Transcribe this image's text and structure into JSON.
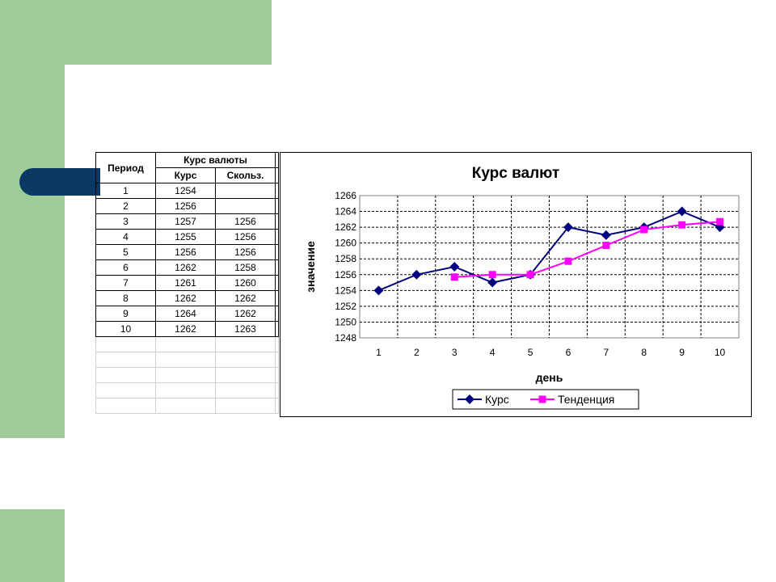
{
  "table": {
    "header": {
      "period": "Период",
      "group": "Курс валюты",
      "kurs": "Курс",
      "moving": "Скольз."
    },
    "rows": [
      {
        "period": "1",
        "kurs": "1254",
        "moving": ""
      },
      {
        "period": "2",
        "kurs": "1256",
        "moving": ""
      },
      {
        "period": "3",
        "kurs": "1257",
        "moving": "1256"
      },
      {
        "period": "4",
        "kurs": "1255",
        "moving": "1256"
      },
      {
        "period": "5",
        "kurs": "1256",
        "moving": "1256"
      },
      {
        "period": "6",
        "kurs": "1262",
        "moving": "1258"
      },
      {
        "period": "7",
        "kurs": "1261",
        "moving": "1260"
      },
      {
        "period": "8",
        "kurs": "1262",
        "moving": "1262"
      },
      {
        "period": "9",
        "kurs": "1264",
        "moving": "1262"
      },
      {
        "period": "10",
        "kurs": "1262",
        "moving": "1263"
      }
    ]
  },
  "chart_data": {
    "type": "line",
    "title": "Курс валют",
    "xlabel": "день",
    "ylabel": "значение",
    "categories": [
      "1",
      "2",
      "3",
      "4",
      "5",
      "6",
      "7",
      "8",
      "9",
      "10"
    ],
    "ylim": [
      1248,
      1266
    ],
    "yticks": [
      "1248",
      "1250",
      "1252",
      "1254",
      "1256",
      "1258",
      "1260",
      "1262",
      "1264",
      "1266"
    ],
    "grid": true,
    "legend_position": "bottom",
    "series": [
      {
        "name": "Курс",
        "color": "#000080",
        "marker": "diamond",
        "values": [
          1254,
          1256,
          1257,
          1255,
          1256,
          1262,
          1261,
          1262,
          1264,
          1262
        ]
      },
      {
        "name": "Тенденция",
        "color": "#ff00ff",
        "marker": "square",
        "values": [
          null,
          null,
          1255.7,
          1256,
          1256,
          1257.7,
          1259.7,
          1261.7,
          1262.3,
          1262.7
        ]
      }
    ]
  }
}
